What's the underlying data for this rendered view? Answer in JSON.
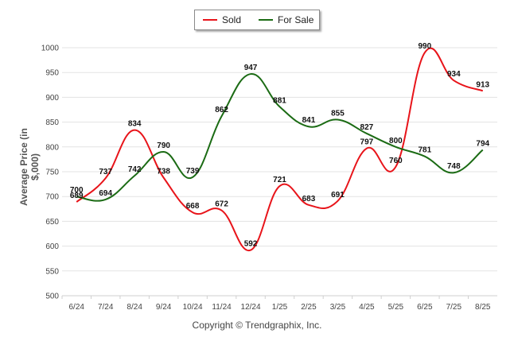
{
  "chart_data": {
    "type": "line",
    "ylabel": "Average Price (in $,000)",
    "ylim": [
      500,
      1000
    ],
    "yticks": [
      500,
      550,
      600,
      650,
      700,
      750,
      800,
      850,
      900,
      950,
      1000
    ],
    "categories": [
      "6/24",
      "7/24",
      "8/24",
      "9/24",
      "10/24",
      "11/24",
      "12/24",
      "1/25",
      "2/25",
      "3/25",
      "4/25",
      "5/25",
      "6/25",
      "7/25",
      "8/25"
    ],
    "series": [
      {
        "name": "Sold",
        "color": "#e8141a",
        "values": [
          689,
          737,
          834,
          738,
          668,
          672,
          592,
          721,
          683,
          691,
          797,
          760,
          990,
          934,
          913
        ]
      },
      {
        "name": "For Sale",
        "color": "#1b6b14",
        "values": [
          700,
          694,
          742,
          790,
          739,
          862,
          947,
          881,
          841,
          855,
          827,
          800,
          781,
          748,
          794
        ]
      }
    ],
    "grid": "horizontal",
    "legend": "top-center"
  },
  "footer": {
    "copyright": "Copyright © Trendgraphix, Inc."
  }
}
